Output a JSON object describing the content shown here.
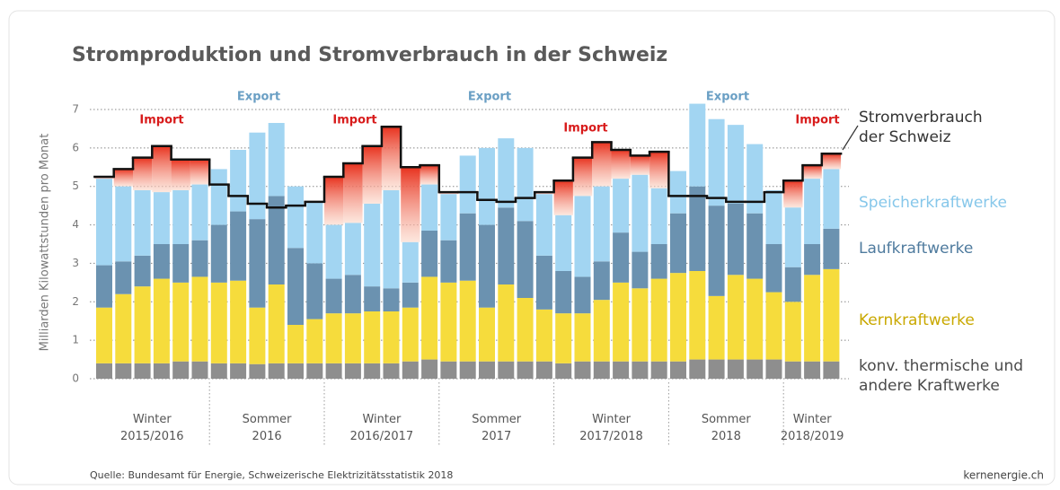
{
  "chart_data": {
    "type": "bar",
    "title": "Stromproduktion und Stromverbrauch in der Schweiz",
    "y_label": "Milliarden Kilowattstunden pro Monat",
    "source": "Quelle: Bundesamt für Energie, Schweizerische Elektrizitätsstatistik 2018",
    "credit": "kernenergie.ch",
    "stacked": true,
    "ylim": [
      0,
      7
    ],
    "yticks": [
      0,
      1,
      2,
      3,
      4,
      5,
      6,
      7
    ],
    "grid": true,
    "periods": [
      "Winter 2015/2016",
      "Sommer 2016",
      "Winter 2016/2017",
      "Sommer 2017",
      "Winter 2017/2018",
      "Sommer 2018",
      "Winter 2018/2019"
    ],
    "annotations": [
      "Import",
      "Export",
      "Import",
      "Export",
      "Import",
      "Export",
      "Import"
    ],
    "categories": [
      null,
      null,
      null,
      null,
      null,
      null,
      null,
      null,
      null,
      null,
      null,
      null,
      null,
      null,
      null,
      null,
      null,
      null,
      null,
      null,
      null,
      null,
      null,
      null,
      null,
      null,
      null,
      null,
      null,
      null,
      null,
      null,
      null,
      null,
      null,
      null,
      null,
      null,
      null
    ],
    "series": [
      {
        "name": "konv. thermische und andere Kraftwerke",
        "color": "#8e8e8e",
        "values": [
          0.4,
          0.4,
          0.4,
          0.4,
          0.45,
          0.45,
          0.4,
          0.4,
          0.38,
          0.4,
          0.4,
          0.4,
          0.4,
          0.4,
          0.4,
          0.4,
          0.45,
          0.5,
          0.45,
          0.45,
          0.45,
          0.45,
          0.45,
          0.45,
          0.4,
          0.45,
          0.45,
          0.45,
          0.45,
          0.45,
          0.45,
          0.5,
          0.5,
          0.5,
          0.5,
          0.5,
          0.45,
          0.45,
          0.45
        ]
      },
      {
        "name": "Kernkraftwerke",
        "color": "#f6dc3c",
        "values": [
          1.45,
          1.8,
          2.0,
          2.2,
          2.05,
          2.2,
          2.1,
          2.15,
          1.47,
          2.05,
          1.0,
          1.15,
          1.3,
          1.3,
          1.35,
          1.35,
          1.4,
          2.15,
          2.05,
          2.1,
          1.4,
          2.0,
          1.65,
          1.35,
          1.3,
          1.25,
          1.6,
          2.05,
          1.9,
          2.15,
          2.3,
          2.3,
          1.65,
          2.2,
          2.1,
          1.75,
          1.55,
          2.25,
          2.4
        ]
      },
      {
        "name": "Laufkraftwerke",
        "color": "#6b92b0",
        "values": [
          1.1,
          0.85,
          0.8,
          0.9,
          1.0,
          0.95,
          1.5,
          1.8,
          2.3,
          2.3,
          2.0,
          1.45,
          0.9,
          1.0,
          0.65,
          0.6,
          0.65,
          1.2,
          1.1,
          1.75,
          2.15,
          2.0,
          2.0,
          1.4,
          1.1,
          0.95,
          1.0,
          1.3,
          0.95,
          0.9,
          1.55,
          2.2,
          2.35,
          1.85,
          1.7,
          1.25,
          0.9,
          0.8,
          1.05
        ]
      },
      {
        "name": "Speicherkraftwerke",
        "color": "#a2d5f2",
        "values": [
          2.25,
          1.95,
          1.7,
          1.35,
          1.4,
          1.45,
          1.45,
          1.6,
          2.25,
          1.9,
          1.6,
          1.6,
          1.4,
          1.35,
          2.15,
          2.55,
          1.05,
          1.2,
          1.2,
          1.5,
          2.0,
          1.8,
          1.9,
          1.6,
          1.45,
          2.1,
          1.95,
          1.4,
          2.0,
          1.45,
          1.1,
          2.15,
          2.25,
          2.05,
          1.8,
          1.4,
          1.55,
          1.7,
          1.55
        ]
      },
      {
        "name": "Stromverbrauch der Schweiz",
        "type": "line",
        "color": "#111111",
        "values": [
          5.25,
          5.45,
          5.75,
          6.05,
          5.7,
          5.7,
          5.05,
          4.75,
          4.55,
          4.45,
          4.5,
          4.6,
          5.25,
          5.6,
          6.05,
          6.55,
          5.5,
          5.55,
          4.85,
          4.85,
          4.65,
          4.6,
          4.7,
          4.85,
          5.15,
          5.75,
          6.15,
          5.95,
          5.8,
          5.9,
          4.75,
          4.75,
          4.7,
          4.6,
          4.6,
          4.85,
          5.15,
          5.55,
          5.85
        ]
      }
    ]
  }
}
